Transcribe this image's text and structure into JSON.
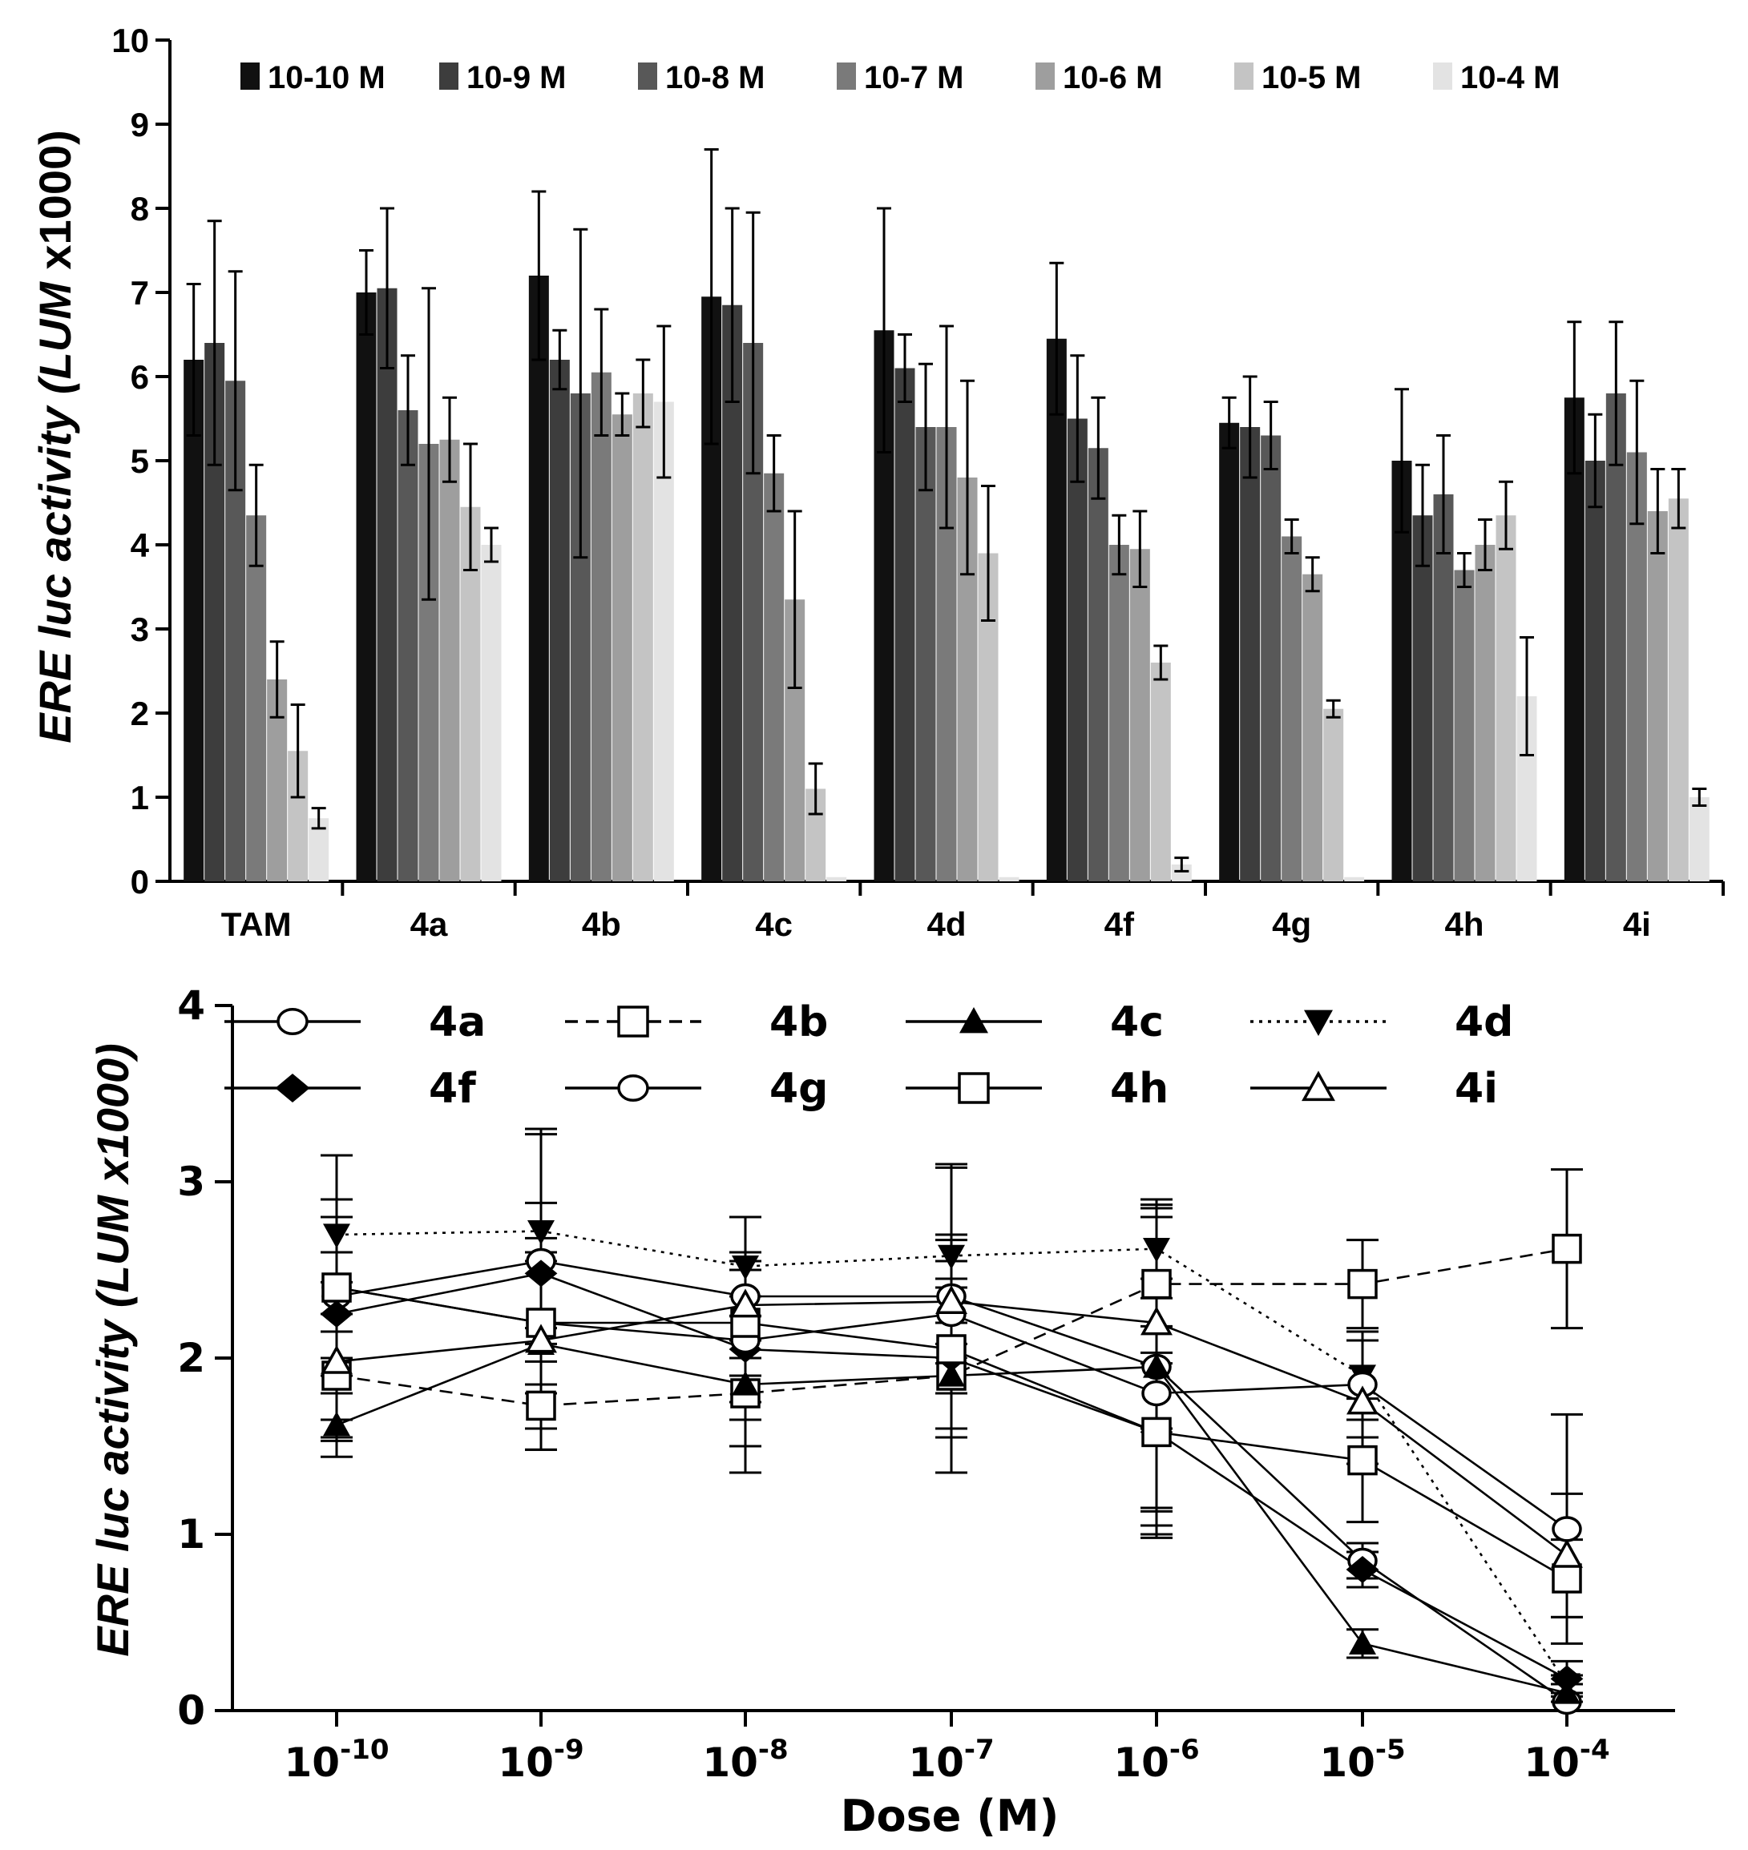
{
  "chart_data": [
    {
      "type": "bar",
      "title": "",
      "xlabel": "",
      "ylabel": "ERE luc activity (LUM x1000)",
      "ylabel_parts": [
        "ERE luc activity (",
        "LUM",
        " x1000)"
      ],
      "ylim": [
        0,
        10
      ],
      "yticks": [
        "0",
        "1",
        "2",
        "3",
        "4",
        "5",
        "6",
        "7",
        "8",
        "9",
        "10"
      ],
      "legend_position": "top",
      "categories": [
        "TAM",
        "4a",
        "4b",
        "4c",
        "4d",
        "4f",
        "4g",
        "4h",
        "4i"
      ],
      "series": [
        {
          "name": "10-10 M",
          "color": "#111111",
          "values": [
            6.2,
            7.0,
            7.2,
            6.95,
            6.55,
            6.45,
            5.45,
            5.0,
            5.75
          ],
          "errors": [
            0.9,
            0.5,
            1.0,
            1.75,
            1.45,
            0.9,
            0.3,
            0.85,
            0.9
          ]
        },
        {
          "name": "10-9 M",
          "color": "#3d3d3d",
          "values": [
            6.4,
            7.05,
            6.2,
            6.85,
            6.1,
            5.5,
            5.4,
            4.35,
            5.0
          ],
          "errors": [
            1.45,
            0.95,
            0.35,
            1.15,
            0.4,
            0.75,
            0.6,
            0.6,
            0.55
          ]
        },
        {
          "name": "10-8 M",
          "color": "#585858",
          "values": [
            5.95,
            5.6,
            5.8,
            6.4,
            5.4,
            5.15,
            5.3,
            4.6,
            5.8
          ],
          "errors": [
            1.3,
            0.65,
            1.95,
            1.55,
            0.75,
            0.6,
            0.4,
            0.7,
            0.85
          ]
        },
        {
          "name": "10-7 M",
          "color": "#7a7a7a",
          "values": [
            4.35,
            5.2,
            6.05,
            4.85,
            5.4,
            4.0,
            4.1,
            3.7,
            5.1
          ],
          "errors": [
            0.6,
            1.85,
            0.75,
            0.45,
            1.2,
            0.35,
            0.2,
            0.2,
            0.85
          ]
        },
        {
          "name": "10-6 M",
          "color": "#9e9e9e",
          "values": [
            2.4,
            5.25,
            5.55,
            3.35,
            4.8,
            3.95,
            3.65,
            4.0,
            4.4
          ],
          "errors": [
            0.45,
            0.5,
            0.25,
            1.05,
            1.15,
            0.45,
            0.2,
            0.3,
            0.5
          ]
        },
        {
          "name": "10-5 M",
          "color": "#c4c4c4",
          "values": [
            1.55,
            4.45,
            5.8,
            1.1,
            3.9,
            2.6,
            2.05,
            4.35,
            4.55
          ],
          "errors": [
            0.55,
            0.75,
            0.4,
            0.3,
            0.8,
            0.2,
            0.1,
            0.4,
            0.35
          ]
        },
        {
          "name": "10-4 M",
          "color": "#e3e3e3",
          "values": [
            0.75,
            4.0,
            5.7,
            0.05,
            0.05,
            0.2,
            0.05,
            2.2,
            1.0
          ],
          "errors": [
            0.12,
            0.2,
            0.9,
            0.0,
            0.0,
            0.08,
            0.0,
            0.7,
            0.1
          ]
        }
      ]
    },
    {
      "type": "line",
      "title": "",
      "xlabel": "Dose (M)",
      "ylabel": "ERE luc activity (LUM x1000)",
      "ylim": [
        0,
        4
      ],
      "yticks": [
        "0",
        "1",
        "2",
        "3",
        "4"
      ],
      "x": [
        "10-10",
        "10-9",
        "10-8",
        "10-7",
        "10-6",
        "10-5",
        "10-4"
      ],
      "x_tick_labels": [
        {
          "base": "10",
          "exp": "-10"
        },
        {
          "base": "10",
          "exp": "-9"
        },
        {
          "base": "10",
          "exp": "-8"
        },
        {
          "base": "10",
          "exp": "-7"
        },
        {
          "base": "10",
          "exp": "-6"
        },
        {
          "base": "10",
          "exp": "-5"
        },
        {
          "base": "10",
          "exp": "-4"
        }
      ],
      "legend_position": "top",
      "series": [
        {
          "name": "4a",
          "marker": "circle-open",
          "dash": "solid",
          "values": [
            2.35,
            2.55,
            2.35,
            2.35,
            1.95,
            0.85,
            0.05
          ],
          "errors": [
            0.8,
            0.75,
            0.45,
            0.75,
            0.95,
            0.1,
            0.05
          ]
        },
        {
          "name": "4b",
          "marker": "square-open",
          "dash": "dashed",
          "values": [
            1.9,
            1.73,
            1.8,
            1.9,
            2.42,
            2.42,
            2.62
          ],
          "errors": [
            0.25,
            0.25,
            0.3,
            0.3,
            0.45,
            0.25,
            0.45
          ]
        },
        {
          "name": "4c",
          "marker": "triangle-up-filled",
          "dash": "solid",
          "values": [
            1.62,
            2.08,
            1.85,
            1.9,
            1.95,
            0.38,
            0.1
          ],
          "errors": [
            0.18,
            0.6,
            0.5,
            0.55,
            0.9,
            0.08,
            0.05
          ]
        },
        {
          "name": "4d",
          "marker": "triangle-down-filled",
          "dash": "dotted",
          "values": [
            2.7,
            2.72,
            2.52,
            2.58,
            2.62,
            1.9,
            0.15
          ],
          "errors": [
            0.45,
            0.55,
            0.28,
            0.5,
            0.28,
            0.25,
            0.05
          ]
        },
        {
          "name": "4f",
          "marker": "diamond-filled",
          "dash": "solid",
          "values": [
            2.25,
            2.48,
            2.05,
            2.0,
            1.58,
            0.8,
            0.18
          ],
          "errors": [
            0.35,
            0.4,
            0.3,
            0.4,
            0.6,
            0.1,
            0.1
          ]
        },
        {
          "name": "4g",
          "marker": "circle-open",
          "dash": "solid",
          "values": [
            2.4,
            2.2,
            2.1,
            2.25,
            1.8,
            1.85,
            1.03
          ],
          "errors": [
            0.5,
            0.4,
            0.45,
            0.45,
            0.65,
            0.3,
            0.65
          ]
        },
        {
          "name": "4h",
          "marker": "square-open",
          "dash": "solid",
          "values": [
            2.4,
            2.2,
            2.2,
            2.05,
            1.58,
            1.42,
            0.75
          ],
          "errors": [
            0.4,
            0.35,
            0.3,
            0.5,
            0.45,
            0.35,
            0.22
          ]
        },
        {
          "name": "4i",
          "marker": "triangle-up-open",
          "dash": "solid",
          "values": [
            1.98,
            2.1,
            2.3,
            2.32,
            2.2,
            1.75,
            0.88
          ],
          "errors": [
            0.45,
            0.5,
            0.3,
            0.35,
            0.6,
            0.35,
            0.35
          ]
        }
      ]
    }
  ]
}
